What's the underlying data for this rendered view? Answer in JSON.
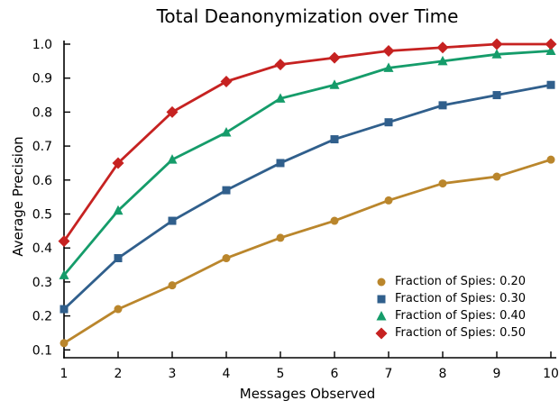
{
  "chart_data": {
    "type": "line",
    "title": "Total Deanonymization over Time",
    "xlabel": "Messages Observed",
    "ylabel": "Average Precision",
    "x": [
      1,
      2,
      3,
      4,
      5,
      6,
      7,
      8,
      9,
      10
    ],
    "xticks": [
      1,
      2,
      3,
      4,
      5,
      6,
      7,
      8,
      9,
      10
    ],
    "yticks": [
      1.0,
      0.9,
      0.8,
      0.7,
      0.6,
      0.5,
      0.4,
      0.3,
      0.2,
      0.1
    ],
    "xlim": [
      1,
      10
    ],
    "ylim": [
      0.1,
      1.0
    ],
    "grid": false,
    "legend_position": "lower right",
    "background": "#ffffff",
    "axis_color": "#000000",
    "series": [
      {
        "name": "Fraction of Spies: 0.20",
        "color": "#BA862C",
        "marker": "circle",
        "values": [
          0.12,
          0.22,
          0.29,
          0.37,
          0.43,
          0.48,
          0.54,
          0.59,
          0.61,
          0.66
        ]
      },
      {
        "name": "Fraction of Spies: 0.30",
        "color": "#305F8C",
        "marker": "square",
        "values": [
          0.22,
          0.37,
          0.48,
          0.57,
          0.65,
          0.72,
          0.77,
          0.82,
          0.85,
          0.88
        ]
      },
      {
        "name": "Fraction of Spies: 0.40",
        "color": "#159C6A",
        "marker": "triangle",
        "values": [
          0.32,
          0.51,
          0.66,
          0.74,
          0.84,
          0.88,
          0.93,
          0.95,
          0.97,
          0.98
        ]
      },
      {
        "name": "Fraction of Spies: 0.50",
        "color": "#C62221",
        "marker": "diamond",
        "values": [
          0.42,
          0.65,
          0.8,
          0.89,
          0.94,
          0.96,
          0.98,
          0.99,
          1.0,
          1.0
        ]
      }
    ]
  }
}
